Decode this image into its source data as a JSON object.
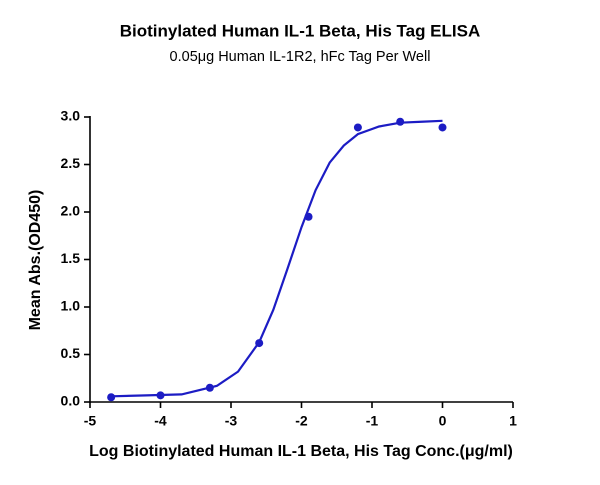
{
  "chart_data": {
    "type": "scatter",
    "title": "Biotinylated Human IL-1 Beta, His Tag ELISA",
    "subtitle": "0.05μg Human IL-1R2, hFc Tag Per Well",
    "x_label": "Log Biotinylated Human IL-1 Beta, His Tag Conc.(μg/ml)",
    "y_label": "Mean Abs.(OD450)",
    "x": [
      -4.7,
      -4.0,
      -3.3,
      -2.6,
      -1.9,
      -1.2,
      -0.6,
      0.0
    ],
    "values": [
      0.05,
      0.07,
      0.15,
      0.62,
      1.95,
      2.89,
      2.95,
      2.89
    ],
    "fit_x": [
      -4.7,
      -4.2,
      -3.7,
      -3.2,
      -2.9,
      -2.6,
      -2.4,
      -2.2,
      -2.0,
      -1.8,
      -1.6,
      -1.4,
      -1.2,
      -0.9,
      -0.6,
      -0.3,
      0.0
    ],
    "fit_values": [
      0.06,
      0.07,
      0.08,
      0.17,
      0.32,
      0.63,
      0.97,
      1.4,
      1.84,
      2.23,
      2.52,
      2.7,
      2.82,
      2.9,
      2.94,
      2.95,
      2.96
    ],
    "color": "#1c1cc4",
    "xlim": [
      -5,
      1
    ],
    "xticks": [
      -5,
      -4,
      -3,
      -2,
      -1,
      0,
      1
    ],
    "ylim": [
      0,
      3
    ],
    "yticks": [
      {
        "value": 0,
        "label": "0.0"
      },
      0.5,
      {
        "value": 1,
        "label": "1.0"
      },
      1.5,
      {
        "value": 2,
        "label": "2.0"
      },
      2.5,
      {
        "value": 3,
        "label": "3.0"
      }
    ]
  }
}
